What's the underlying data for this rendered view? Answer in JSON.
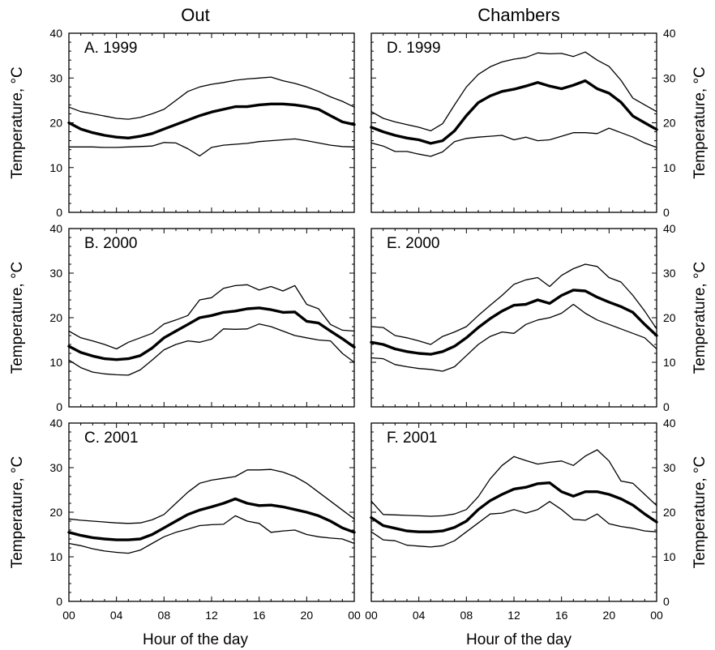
{
  "column_titles": [
    "Out",
    "Chambers"
  ],
  "xlabel": "Hour of the day",
  "ylabel": "Temperature, °C",
  "x_tick_labels": [
    "00",
    "04",
    "08",
    "12",
    "16",
    "20",
    "00"
  ],
  "y_tick_labels": [
    "0",
    "10",
    "20",
    "30",
    "40"
  ],
  "colors": {
    "lines": "#000000",
    "background": "#ffffff"
  },
  "chart_data": [
    {
      "type": "line",
      "panel": "A. 1999",
      "column": "Out",
      "x": [
        0,
        1,
        2,
        3,
        4,
        5,
        6,
        7,
        8,
        9,
        10,
        11,
        12,
        13,
        14,
        15,
        16,
        17,
        18,
        19,
        20,
        21,
        22,
        23,
        24
      ],
      "xlim": [
        0,
        24
      ],
      "ylim": [
        0,
        40
      ],
      "grid": false,
      "series": [
        {
          "role": "max",
          "values": [
            23.5,
            22.5,
            22,
            21.5,
            21,
            20.8,
            21.2,
            22,
            23,
            25,
            27,
            28,
            28.6,
            29,
            29.5,
            29.8,
            30,
            30.2,
            29.4,
            28.8,
            28,
            27,
            25.8,
            24.8,
            23.5
          ]
        },
        {
          "role": "mean",
          "values": [
            20,
            18.6,
            17.8,
            17.2,
            16.8,
            16.6,
            17,
            17.6,
            18.6,
            19.6,
            20.6,
            21.6,
            22.4,
            23,
            23.6,
            23.6,
            24,
            24.2,
            24.2,
            24,
            23.6,
            23,
            21.6,
            20.2,
            19.6
          ]
        },
        {
          "role": "min",
          "values": [
            14.6,
            14.6,
            14.6,
            14.5,
            14.5,
            14.6,
            14.7,
            14.8,
            15.6,
            15.5,
            14.2,
            12.6,
            14.5,
            15,
            15.2,
            15.4,
            15.8,
            16,
            16.2,
            16.4,
            16,
            15.5,
            15,
            14.7,
            14.6
          ]
        }
      ]
    },
    {
      "type": "line",
      "panel": "B. 2000",
      "column": "Out",
      "x": [
        0,
        1,
        2,
        3,
        4,
        5,
        6,
        7,
        8,
        9,
        10,
        11,
        12,
        13,
        14,
        15,
        16,
        17,
        18,
        19,
        20,
        21,
        22,
        23,
        24
      ],
      "xlim": [
        0,
        24
      ],
      "ylim": [
        0,
        40
      ],
      "grid": false,
      "series": [
        {
          "role": "max",
          "values": [
            17,
            15.5,
            14.8,
            14,
            13,
            14.5,
            15.5,
            16.5,
            18.6,
            19.5,
            20.5,
            24,
            24.5,
            26.6,
            27.2,
            27.4,
            26.2,
            27,
            26,
            27.2,
            23,
            22,
            18.5,
            17.2,
            17
          ]
        },
        {
          "role": "mean",
          "values": [
            13.6,
            12.2,
            11.4,
            10.8,
            10.6,
            10.8,
            11.5,
            13.2,
            15.5,
            17,
            18.5,
            20,
            20.5,
            21.2,
            21.5,
            22,
            22.2,
            21.8,
            21.2,
            21.3,
            19.2,
            18.8,
            17,
            15.3,
            13.4
          ]
        },
        {
          "role": "min",
          "values": [
            10.5,
            8.8,
            7.8,
            7.4,
            7.2,
            7.1,
            8.3,
            10.5,
            12.8,
            14,
            14.8,
            14.5,
            15.2,
            17.5,
            17.4,
            17.5,
            18.6,
            18,
            17,
            16,
            15.5,
            15,
            14.8,
            12,
            10
          ]
        }
      ]
    },
    {
      "type": "line",
      "panel": "C. 2001",
      "column": "Out",
      "x": [
        0,
        1,
        2,
        3,
        4,
        5,
        6,
        7,
        8,
        9,
        10,
        11,
        12,
        13,
        14,
        15,
        16,
        17,
        18,
        19,
        20,
        21,
        22,
        23,
        24
      ],
      "xlim": [
        0,
        24
      ],
      "ylim": [
        0,
        40
      ],
      "grid": false,
      "series": [
        {
          "role": "max",
          "values": [
            18.5,
            18.2,
            18,
            17.8,
            17.6,
            17.5,
            17.6,
            18.3,
            19.5,
            22,
            24.5,
            26.5,
            27.2,
            27.6,
            28,
            29.5,
            29.5,
            29.6,
            29,
            28,
            26.5,
            24.5,
            22.5,
            20.5,
            18.5
          ]
        },
        {
          "role": "mean",
          "values": [
            15.5,
            14.8,
            14.3,
            14,
            13.8,
            13.8,
            14,
            15,
            16.5,
            18,
            19.5,
            20.5,
            21.2,
            22,
            23,
            22,
            21.5,
            21.6,
            21.2,
            20.6,
            20,
            19.2,
            18,
            16.5,
            15.5
          ]
        },
        {
          "role": "min",
          "values": [
            13,
            12.5,
            11.8,
            11.3,
            11,
            10.8,
            11.5,
            13,
            14.5,
            15.5,
            16.2,
            17,
            17.2,
            17.3,
            19.2,
            18,
            17.5,
            15.5,
            15.8,
            16,
            15,
            14.5,
            14.2,
            14,
            13
          ]
        }
      ]
    },
    {
      "type": "line",
      "panel": "D. 1999",
      "column": "Chambers",
      "x": [
        0,
        1,
        2,
        3,
        4,
        5,
        6,
        7,
        8,
        9,
        10,
        11,
        12,
        13,
        14,
        15,
        16,
        17,
        18,
        19,
        20,
        21,
        22,
        23,
        24
      ],
      "xlim": [
        0,
        24
      ],
      "ylim": [
        0,
        40
      ],
      "grid": false,
      "series": [
        {
          "role": "max",
          "values": [
            22.5,
            21,
            20.2,
            19.6,
            19,
            18.2,
            19.8,
            24,
            28,
            30.8,
            32.5,
            33.6,
            34.2,
            34.6,
            35.6,
            35.4,
            35.5,
            34.8,
            35.8,
            34,
            32.6,
            29.5,
            25.5,
            24,
            22.5
          ]
        },
        {
          "role": "mean",
          "values": [
            19,
            18,
            17.2,
            16.6,
            16.2,
            15.4,
            16,
            18.2,
            21.6,
            24.5,
            26,
            27,
            27.5,
            28.2,
            29,
            28.2,
            27.6,
            28.4,
            29.4,
            27.6,
            26.6,
            24.6,
            21.5,
            20,
            18.5
          ]
        },
        {
          "role": "min",
          "values": [
            15.5,
            14.8,
            13.6,
            13.6,
            13,
            12.5,
            13.5,
            15.8,
            16.5,
            16.8,
            17,
            17.2,
            16.2,
            16.8,
            16,
            16.2,
            17,
            17.8,
            17.8,
            17.6,
            18.8,
            17.8,
            16.8,
            15.5,
            14.5
          ]
        }
      ]
    },
    {
      "type": "line",
      "panel": "E. 2000",
      "column": "Chambers",
      "x": [
        0,
        1,
        2,
        3,
        4,
        5,
        6,
        7,
        8,
        9,
        10,
        11,
        12,
        13,
        14,
        15,
        16,
        17,
        18,
        19,
        20,
        21,
        22,
        23,
        24
      ],
      "xlim": [
        0,
        24
      ],
      "ylim": [
        0,
        40
      ],
      "grid": false,
      "series": [
        {
          "role": "max",
          "values": [
            18,
            17.8,
            16,
            15.5,
            14.8,
            14,
            15.8,
            16.8,
            18,
            20.5,
            22.8,
            25,
            27.5,
            28.5,
            29,
            27,
            29.5,
            31,
            32,
            31.5,
            29,
            28,
            25,
            21.5,
            17.5
          ]
        },
        {
          "role": "mean",
          "values": [
            14.5,
            14,
            13,
            12.4,
            12,
            11.8,
            12.4,
            13.6,
            15.5,
            17.8,
            19.8,
            21.5,
            22.8,
            23,
            24,
            23.2,
            25,
            26.2,
            26,
            24.6,
            23.5,
            22.5,
            21.2,
            18.5,
            16
          ]
        },
        {
          "role": "min",
          "values": [
            11,
            10.8,
            9.5,
            9,
            8.6,
            8.4,
            8,
            9,
            11.5,
            14,
            15.8,
            16.8,
            16.5,
            18.5,
            19.5,
            20,
            21,
            23,
            21,
            19.5,
            18.5,
            17.5,
            16.5,
            15.5,
            13
          ]
        }
      ]
    },
    {
      "type": "line",
      "panel": "F. 2001",
      "column": "Chambers",
      "x": [
        0,
        1,
        2,
        3,
        4,
        5,
        6,
        7,
        8,
        9,
        10,
        11,
        12,
        13,
        14,
        15,
        16,
        17,
        18,
        19,
        20,
        21,
        22,
        23,
        24
      ],
      "xlim": [
        0,
        24
      ],
      "ylim": [
        0,
        40
      ],
      "grid": false,
      "series": [
        {
          "role": "max",
          "values": [
            22.5,
            19.5,
            19.4,
            19.3,
            19.2,
            19.1,
            19.2,
            19.6,
            20.6,
            23.5,
            27.5,
            30.5,
            32.5,
            31.6,
            30.8,
            31.2,
            31.5,
            30.5,
            32.6,
            34,
            31.5,
            27,
            26.5,
            24,
            21.5
          ]
        },
        {
          "role": "mean",
          "values": [
            18.8,
            17,
            16.4,
            15.8,
            15.6,
            15.6,
            15.8,
            16.6,
            18,
            20.6,
            22.6,
            24,
            25.2,
            25.6,
            26.4,
            26.6,
            24.6,
            23.6,
            24.6,
            24.6,
            24,
            23,
            21.6,
            19.6,
            17.8
          ]
        },
        {
          "role": "min",
          "values": [
            15.6,
            13.8,
            13.6,
            12.6,
            12.4,
            12.2,
            12.5,
            13.6,
            15.6,
            17.6,
            19.6,
            19.8,
            20.6,
            19.8,
            20.6,
            22.4,
            20.6,
            18.4,
            18.2,
            19.6,
            17.4,
            16.8,
            16.4,
            15.8,
            15.6
          ]
        }
      ]
    }
  ]
}
